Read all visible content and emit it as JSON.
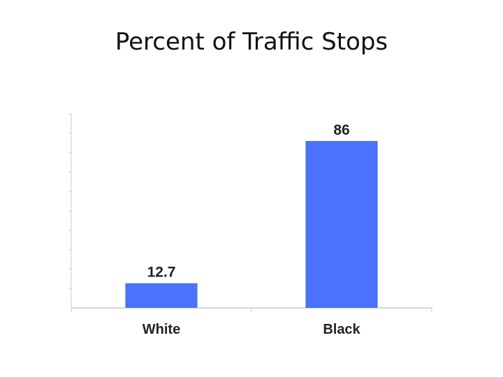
{
  "slide": {
    "title": "Percent of Traffic Stops"
  },
  "chart_data": {
    "type": "bar",
    "title": "Percent of Traffic Stops",
    "categories": [
      "White",
      "Black"
    ],
    "values": [
      12.7,
      86
    ],
    "value_labels": [
      "12.7",
      "86"
    ],
    "xlabel": "",
    "ylabel": "",
    "ylim": [
      0,
      100
    ],
    "grid": false,
    "bar_color": "#4a72fb",
    "axis_color": "#cccccc"
  }
}
